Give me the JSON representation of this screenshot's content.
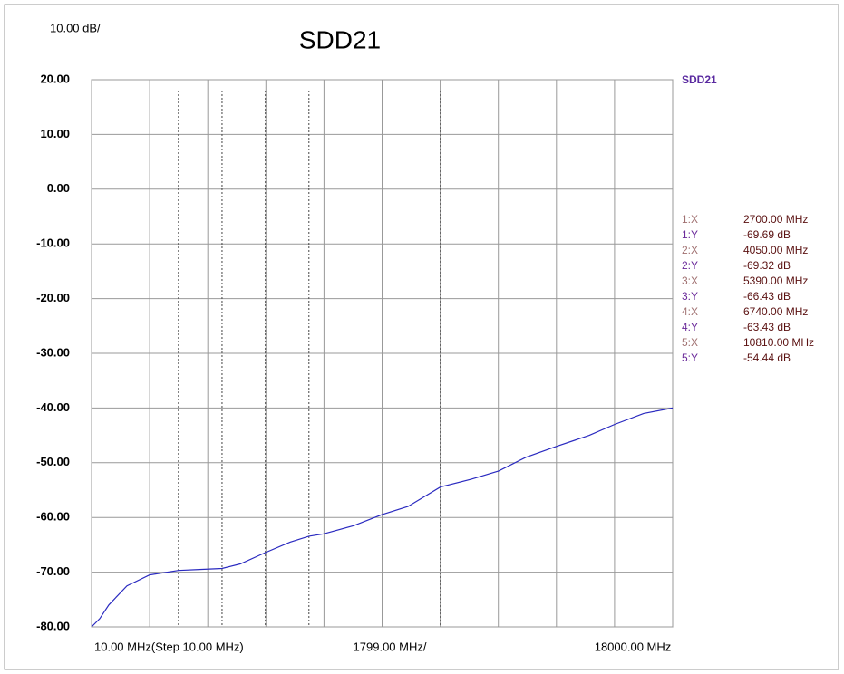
{
  "chart_data": {
    "type": "line",
    "title": "SDD21",
    "scale_label": "10.00 dB/",
    "x_start_label": "10.00 MHz(Step 10.00 MHz)",
    "x_center_label": "1799.00 MHz/",
    "x_end_label": "18000.00 MHz",
    "xlim": [
      10,
      18000
    ],
    "xticks": [
      10,
      1809,
      3608,
      5407,
      7206,
      9005,
      10804,
      12603,
      14402,
      16201,
      18000
    ],
    "ylim": [
      -80,
      20
    ],
    "yticks": [
      {
        "value": 20,
        "label": "20.00"
      },
      {
        "value": 10,
        "label": "10.00"
      },
      {
        "value": 0,
        "label": "0.00"
      },
      {
        "value": -10,
        "label": "-10.00"
      },
      {
        "value": -20,
        "label": "-20.00"
      },
      {
        "value": -30,
        "label": "-30.00"
      },
      {
        "value": -40,
        "label": "-40.00"
      },
      {
        "value": -50,
        "label": "-50.00"
      },
      {
        "value": -60,
        "label": "-60.00"
      },
      {
        "value": -70,
        "label": "-70.00"
      },
      {
        "value": -80,
        "label": "-80.00"
      }
    ],
    "grid": true,
    "x": [
      10,
      262,
      543,
      1105,
      1806,
      2700,
      3350,
      4050,
      4613,
      5390,
      6156,
      6740,
      7195,
      8121,
      8991,
      9805,
      10810,
      11770,
      12611,
      13453,
      14407,
      15418,
      16203,
      17102,
      18000
    ],
    "series": [
      {
        "name": "SDD21",
        "color": "#2a2ac0",
        "values": [
          -80,
          -78.5,
          -76,
          -72.5,
          -70.5,
          -69.69,
          -69.5,
          -69.32,
          -68.5,
          -66.43,
          -64.5,
          -63.43,
          -63,
          -61.5,
          -59.5,
          -58,
          -54.44,
          -53,
          -51.5,
          -49,
          -47,
          -45,
          -43,
          -41,
          -40
        ]
      }
    ],
    "markers": [
      {
        "x_name": "1:X",
        "x": {
          "value": 2700,
          "label": "2700.00 MHz"
        },
        "y_name": "1:Y",
        "y": "-69.69 dB"
      },
      {
        "x_name": "2:X",
        "x": {
          "value": 4050,
          "label": "4050.00 MHz"
        },
        "y_name": "2:Y",
        "y": "-69.32 dB"
      },
      {
        "x_name": "3:X",
        "x": {
          "value": 5390,
          "label": "5390.00 MHz"
        },
        "y_name": "3:Y",
        "y": "-66.43 dB"
      },
      {
        "x_name": "4:X",
        "x": {
          "value": 6740,
          "label": "6740.00 MHz"
        },
        "y_name": "4:Y",
        "y": "-63.43 dB"
      },
      {
        "x_name": "5:X",
        "x": {
          "value": 10810,
          "label": "10810.00 MHz"
        },
        "y_name": "5:Y",
        "y": "-54.44 dB"
      }
    ]
  }
}
